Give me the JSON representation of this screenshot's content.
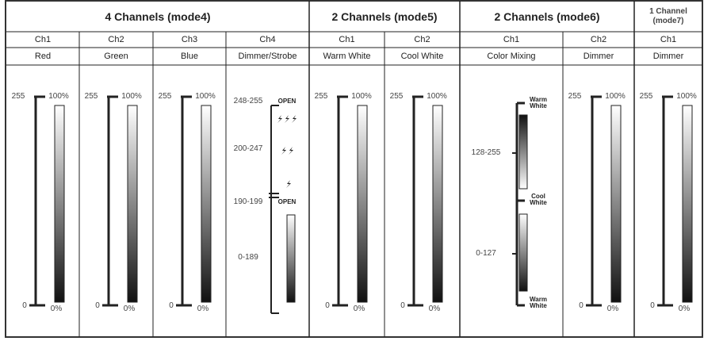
{
  "modes": [
    {
      "title": "4 Channels (mode4)",
      "channels": [
        {
          "channel": "Ch1",
          "function": "Red",
          "scale": {
            "max": "255",
            "max_percent": "100%",
            "min": "0",
            "min_percent": "0%"
          }
        },
        {
          "channel": "Ch2",
          "function": "Green",
          "scale": {
            "max": "255",
            "max_percent": "100%",
            "min": "0",
            "min_percent": "0%"
          }
        },
        {
          "channel": "Ch3",
          "function": "Blue",
          "scale": {
            "max": "255",
            "max_percent": "100%",
            "min": "0",
            "min_percent": "0%"
          }
        },
        {
          "channel": "Ch4",
          "function": "Dimmer/Strobe",
          "ranges": [
            {
              "range": "248-255",
              "label": "OPEN"
            },
            {
              "range": "200-247"
            },
            {
              "range": "190-199",
              "label": "OPEN"
            },
            {
              "range": "0-189"
            }
          ]
        }
      ]
    },
    {
      "title": "2 Channels (mode5)",
      "channels": [
        {
          "channel": "Ch1",
          "function": "Warm White",
          "scale": {
            "max": "255",
            "max_percent": "100%",
            "min": "0",
            "min_percent": "0%"
          }
        },
        {
          "channel": "Ch2",
          "function": "Cool  White",
          "scale": {
            "max": "255",
            "max_percent": "100%",
            "min": "0",
            "min_percent": "0%"
          }
        }
      ]
    },
    {
      "title": "2 Channels (mode6)",
      "channels": [
        {
          "channel": "Ch1",
          "function": "Color Mixing",
          "ranges": [
            {
              "range": "128-255"
            },
            {
              "range": "0-127"
            }
          ],
          "color_labels": [
            "Warm White",
            "Cool White",
            "Warm White"
          ]
        },
        {
          "channel": "Ch2",
          "function": "Dimmer",
          "scale": {
            "max": "255",
            "max_percent": "100%",
            "min": "0",
            "min_percent": "0%"
          }
        }
      ]
    },
    {
      "title": "1 Channel (mode7)",
      "channels": [
        {
          "channel": "Ch1",
          "function": "Dimmer",
          "scale": {
            "max": "255",
            "max_percent": "100%",
            "min": "0",
            "min_percent": "0%"
          }
        }
      ]
    }
  ]
}
